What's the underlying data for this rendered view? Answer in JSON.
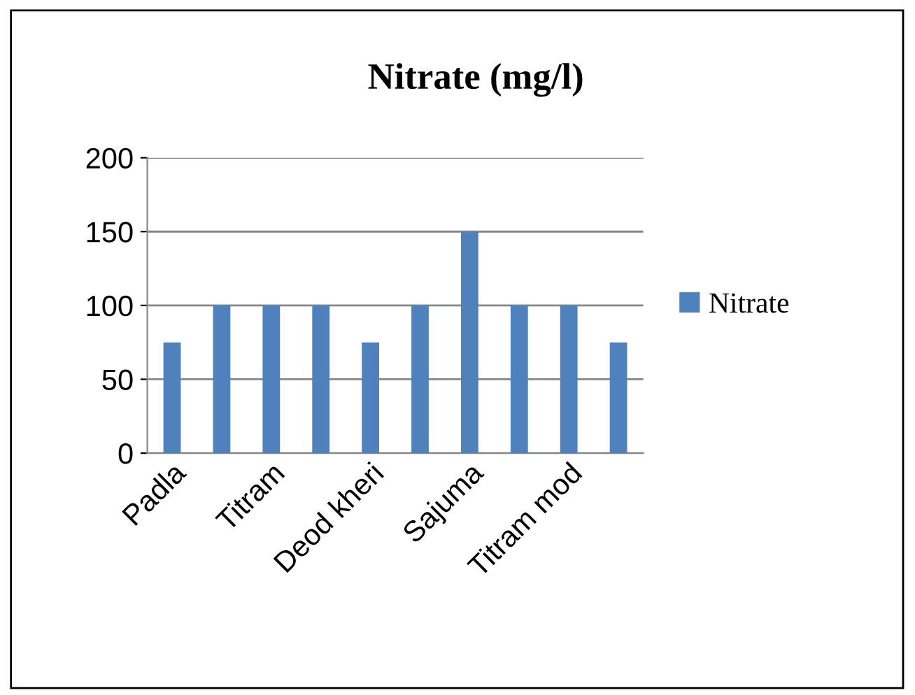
{
  "chart_data": {
    "type": "bar",
    "title": "Nitrate (mg/l)",
    "categories": [
      "Padla",
      null,
      "Titram",
      null,
      "Deod kheri",
      null,
      "Sajuma",
      null,
      "Titram mod",
      null
    ],
    "series": [
      {
        "name": "Nitrate",
        "color": "#4f81bd",
        "values": [
          75,
          100,
          100,
          100,
          75,
          100,
          150,
          100,
          100,
          75
        ]
      }
    ],
    "ylim": [
      0,
      200
    ],
    "yticks": [
      0,
      50,
      100,
      150,
      200
    ],
    "grid": "y",
    "legend": "right"
  }
}
